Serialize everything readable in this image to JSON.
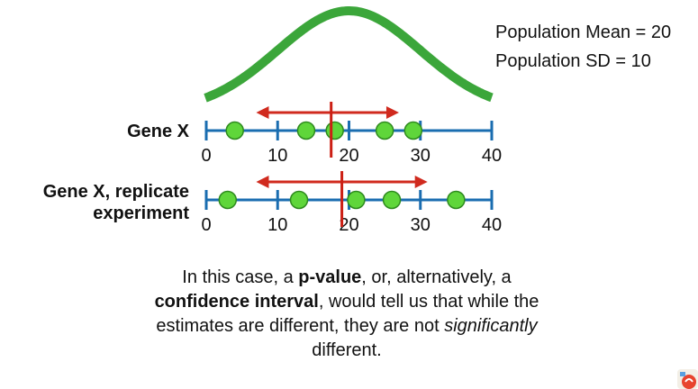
{
  "population": {
    "mean_text": "Population Mean = 20",
    "sd_text": "Population SD = 10",
    "mean": 20,
    "sd": 10
  },
  "rows": [
    {
      "label_lines": [
        "Gene X"
      ],
      "ticks": [
        "0",
        "10",
        "20",
        "30",
        "40"
      ],
      "points": [
        4,
        14,
        18,
        25,
        29
      ],
      "estimate": 17.5,
      "interval": [
        7,
        27
      ]
    },
    {
      "label_lines": [
        "Gene X, replicate",
        "experiment"
      ],
      "ticks": [
        "0",
        "10",
        "20",
        "30",
        "40"
      ],
      "points": [
        3,
        13,
        21,
        26,
        35
      ],
      "estimate": 19,
      "interval": [
        7,
        31
      ]
    }
  ],
  "axis": {
    "min": 0,
    "max": 40,
    "tick_values": [
      0,
      10,
      20,
      30,
      40
    ]
  },
  "caption": {
    "t1": "In this case, a ",
    "b1": "p-value",
    "t2": ", or, alternatively, a ",
    "b2": "confidence interval",
    "t3": ", would tell us that while the estimates are different, they are not ",
    "i1": "significantly",
    "t4": " different."
  },
  "colors": {
    "curve": "#3ba63a",
    "axis": "#1a6db0",
    "point_fill": "#5fd63a",
    "point_stroke": "#2e8a1e",
    "interval": "#d02a1e",
    "estimate": "#cc1f14"
  },
  "logo_icon": "statquest-logo-icon"
}
